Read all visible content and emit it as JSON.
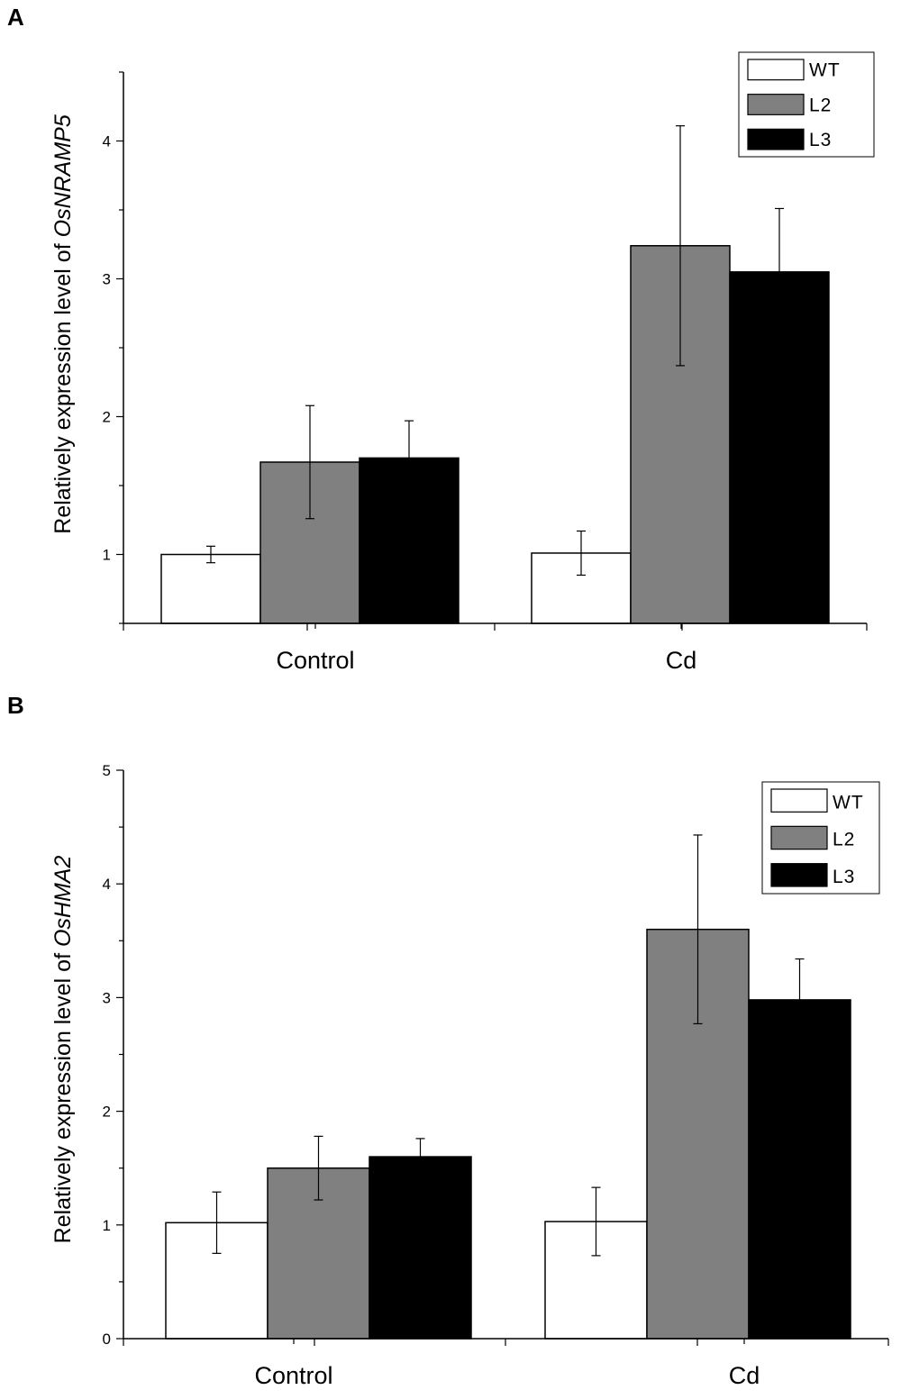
{
  "figure": {
    "series_colors": {
      "WT": "#ffffff",
      "L2": "#808080",
      "L3": "#000000"
    }
  },
  "chart_data": [
    {
      "panel": "A",
      "type": "bar",
      "ylabel_prefix": "Relatively expression level of ",
      "ylabel_gene": "OsNRAMP5",
      "categories": [
        "Control",
        "Cd"
      ],
      "yticks": [
        1,
        2,
        3,
        4
      ],
      "ylim": [
        0.5,
        4.5
      ],
      "series": [
        {
          "name": "WT",
          "values": [
            1.0,
            1.01
          ],
          "errors": [
            0.06,
            0.16
          ]
        },
        {
          "name": "L2",
          "values": [
            1.67,
            3.24
          ],
          "errors": [
            0.41,
            0.87
          ]
        },
        {
          "name": "L3",
          "values": [
            1.7,
            3.05
          ],
          "errors": [
            0.27,
            0.46
          ]
        }
      ],
      "legend": [
        "WT",
        "L2",
        "L3"
      ],
      "legend_position": "top-right"
    },
    {
      "panel": "B",
      "type": "bar",
      "ylabel_prefix": "Relatively expression level of ",
      "ylabel_gene": "OsHMA2",
      "categories": [
        "Control",
        "Cd"
      ],
      "yticks": [
        0,
        1,
        2,
        3,
        4,
        5
      ],
      "ylim": [
        0,
        5
      ],
      "series": [
        {
          "name": "WT",
          "values": [
            1.02,
            1.03
          ],
          "errors": [
            0.27,
            0.3
          ]
        },
        {
          "name": "L2",
          "values": [
            1.5,
            3.6
          ],
          "errors": [
            0.28,
            0.83
          ]
        },
        {
          "name": "L3",
          "values": [
            1.6,
            2.98
          ],
          "errors": [
            0.16,
            0.36
          ]
        }
      ],
      "legend": [
        "WT",
        "L2",
        "L3"
      ],
      "legend_position": "top-right"
    }
  ]
}
